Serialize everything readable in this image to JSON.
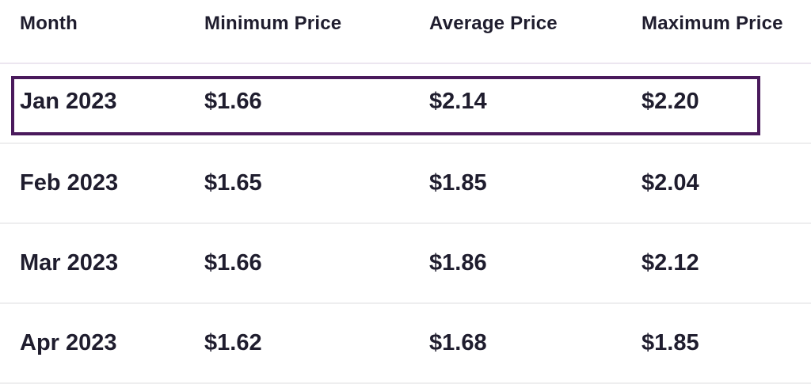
{
  "table": {
    "headers": [
      "Month",
      "Minimum Price",
      "Average Price",
      "Maximum Price"
    ],
    "rows": [
      {
        "month": "Jan 2023",
        "min": "$1.66",
        "avg": "$2.14",
        "max": "$2.20"
      },
      {
        "month": "Feb 2023",
        "min": "$1.65",
        "avg": "$1.85",
        "max": "$2.04"
      },
      {
        "month": "Mar 2023",
        "min": "$1.66",
        "avg": "$1.86",
        "max": "$2.12"
      },
      {
        "month": "Apr 2023",
        "min": "$1.62",
        "avg": "$1.68",
        "max": "$1.85"
      }
    ],
    "highlighted_row": "Jan 2023"
  },
  "colors": {
    "text": "#1f1d2e",
    "highlight_border": "#4a1a5c",
    "row_divider": "#eeeeef"
  }
}
